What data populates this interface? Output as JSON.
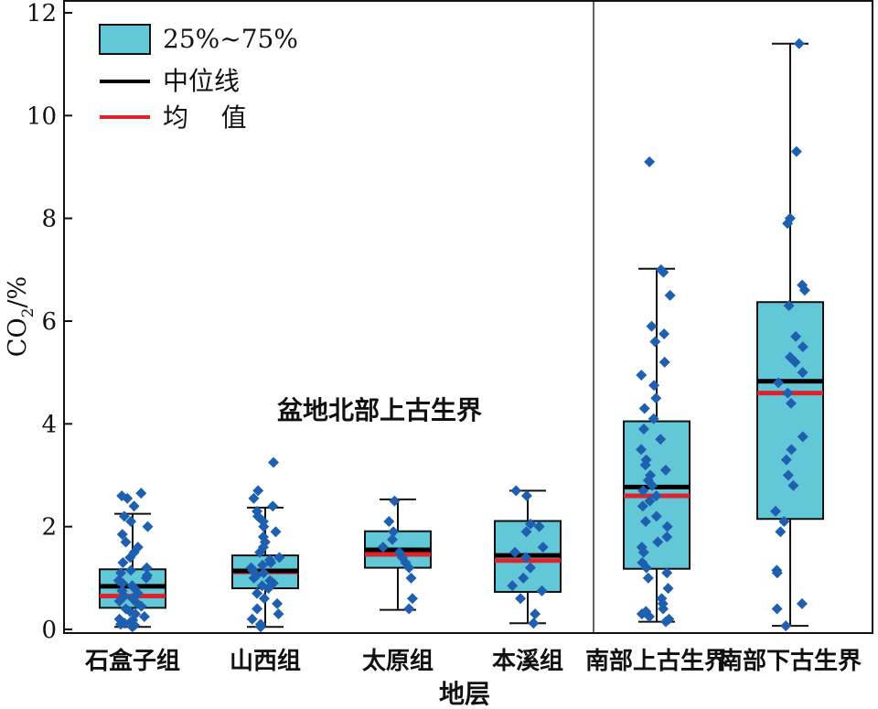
{
  "chart_data": {
    "type": "box",
    "xlabel": "地层",
    "ylabel_main": "CO",
    "ylabel_sub": "2",
    "ylabel_unit": "/%",
    "ylim": [
      0,
      12
    ],
    "yticks": [
      0,
      2,
      4,
      6,
      8,
      10,
      12
    ],
    "grid": false,
    "legend_position": "top-left",
    "legend": {
      "box_label": "25%~75%",
      "median_label": "中位线",
      "mean_label": "均    值"
    },
    "annotation": "盆地北部上古生界",
    "colors": {
      "box_fill": "#62c8d8",
      "median": "#000000",
      "mean": "#e0222b",
      "points": "#1f5fb0"
    },
    "categories": [
      "石盒子组",
      "山西组",
      "太原组",
      "本溪组",
      "南部上古生界",
      "南部下古生界"
    ],
    "groups": [
      {
        "name": "石盒子组",
        "whisker_low": 0.05,
        "q1": 0.42,
        "median": 0.84,
        "mean": 0.65,
        "q3": 1.17,
        "whisker_high": 2.25,
        "points": [
          0.05,
          0.08,
          0.1,
          0.12,
          0.15,
          0.18,
          0.2,
          0.25,
          0.3,
          0.35,
          0.4,
          0.45,
          0.5,
          0.55,
          0.6,
          0.65,
          0.7,
          0.75,
          0.8,
          0.85,
          0.9,
          0.95,
          1.0,
          1.05,
          1.1,
          1.15,
          1.2,
          1.3,
          1.4,
          1.5,
          1.6,
          1.7,
          1.85,
          2.0,
          2.1,
          2.2,
          2.4,
          2.55,
          2.6,
          2.65
        ]
      },
      {
        "name": "山西组",
        "whisker_low": 0.05,
        "q1": 0.8,
        "median": 1.14,
        "mean": 1.12,
        "q3": 1.44,
        "whisker_high": 2.37,
        "points": [
          0.05,
          0.1,
          0.2,
          0.3,
          0.4,
          0.5,
          0.6,
          0.7,
          0.8,
          0.85,
          0.9,
          0.95,
          1.0,
          1.05,
          1.1,
          1.15,
          1.2,
          1.25,
          1.3,
          1.35,
          1.4,
          1.5,
          1.6,
          1.7,
          1.8,
          1.9,
          2.0,
          2.1,
          2.2,
          2.3,
          2.4,
          2.55,
          2.7,
          3.25
        ]
      },
      {
        "name": "太原组",
        "whisker_low": 0.38,
        "q1": 1.2,
        "median": 1.55,
        "mean": 1.46,
        "q3": 1.91,
        "whisker_high": 2.53,
        "points": [
          0.4,
          0.6,
          1.0,
          1.2,
          1.3,
          1.4,
          1.5,
          1.6,
          1.75,
          1.9,
          2.1,
          2.5
        ]
      },
      {
        "name": "本溪组",
        "whisker_low": 0.12,
        "q1": 0.73,
        "median": 1.44,
        "mean": 1.34,
        "q3": 2.11,
        "whisker_high": 2.7,
        "points": [
          0.12,
          0.3,
          0.6,
          0.75,
          0.85,
          1.0,
          1.2,
          1.4,
          1.5,
          1.6,
          1.9,
          2.0,
          2.05,
          2.6,
          2.7
        ]
      },
      {
        "name": "南部上古生界",
        "whisker_low": 0.15,
        "q1": 1.18,
        "median": 2.77,
        "mean": 2.6,
        "q3": 4.05,
        "whisker_high": 7.02,
        "points": [
          0.15,
          0.2,
          0.25,
          0.3,
          0.35,
          0.4,
          0.5,
          0.6,
          0.8,
          1.0,
          1.1,
          1.2,
          1.3,
          1.5,
          1.6,
          1.7,
          1.8,
          2.0,
          2.1,
          2.2,
          2.4,
          2.5,
          2.6,
          2.7,
          2.8,
          2.9,
          3.0,
          3.1,
          3.2,
          3.3,
          3.5,
          3.7,
          3.9,
          4.1,
          4.3,
          4.5,
          4.75,
          4.95,
          5.2,
          5.6,
          5.75,
          5.9,
          6.5,
          6.95,
          7.0,
          9.1
        ]
      },
      {
        "name": "南部下古生界",
        "whisker_low": 0.07,
        "q1": 2.15,
        "median": 4.83,
        "mean": 4.6,
        "q3": 6.37,
        "whisker_high": 11.4,
        "points": [
          0.07,
          0.4,
          0.5,
          1.1,
          1.15,
          1.9,
          2.1,
          2.3,
          2.8,
          3.0,
          3.3,
          3.5,
          3.75,
          4.4,
          4.6,
          4.8,
          5.0,
          5.2,
          5.3,
          5.5,
          5.7,
          6.3,
          6.6,
          6.7,
          7.9,
          8.0,
          9.3,
          11.4
        ]
      }
    ]
  }
}
